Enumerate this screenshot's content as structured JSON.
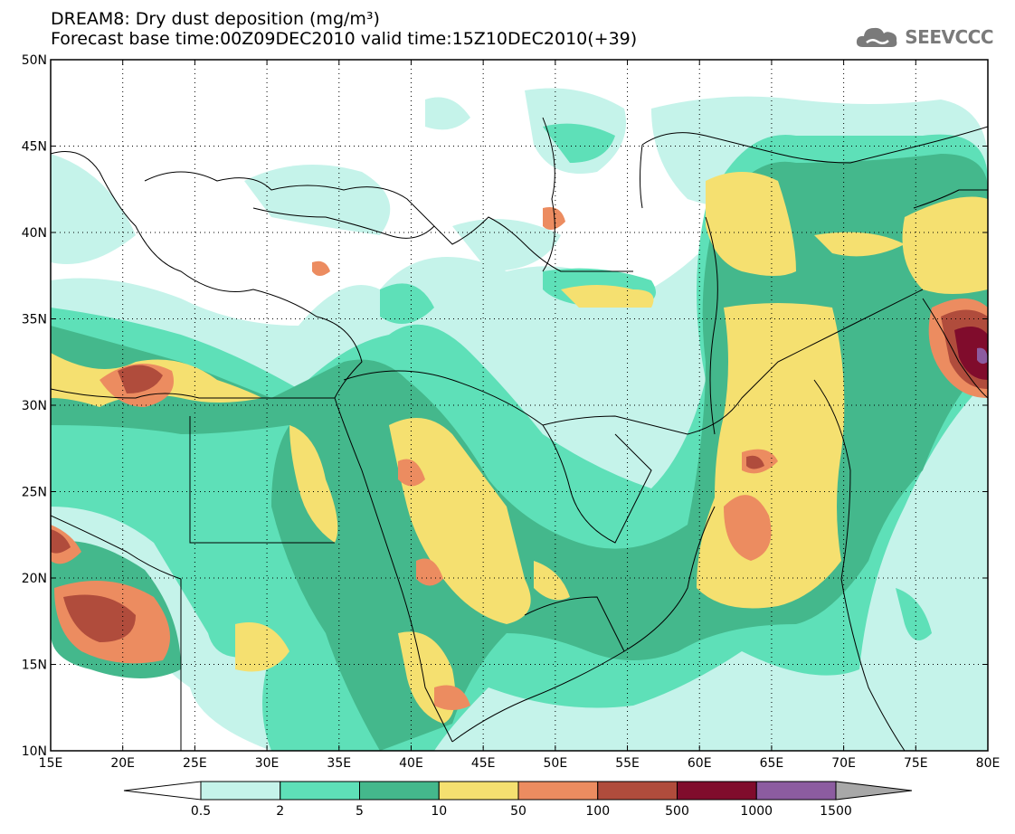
{
  "title": {
    "line1": "DREAM8: Dry dust deposition (mg/m³)",
    "line2": "Forecast base time:00Z09DEC2010 valid time:15Z10DEC2010(+39)"
  },
  "logo": {
    "text": "SEEVCCC",
    "icon": "cloud-icon"
  },
  "map": {
    "lon_ticks": [
      "15E",
      "20E",
      "25E",
      "30E",
      "35E",
      "40E",
      "45E",
      "50E",
      "55E",
      "60E",
      "65E",
      "70E",
      "75E",
      "80E"
    ],
    "lat_ticks": [
      "50N",
      "45N",
      "40N",
      "35N",
      "30N",
      "25N",
      "20N",
      "15N",
      "10N"
    ],
    "lon_range": [
      15,
      80
    ],
    "lat_range": [
      10,
      50
    ],
    "grid": "dotted"
  },
  "colorbar": {
    "labels": [
      "0.5",
      "2",
      "5",
      "10",
      "50",
      "100",
      "500",
      "1000",
      "1500"
    ],
    "colors": [
      "#c5f3ea",
      "#5ee0b8",
      "#44b88c",
      "#f5e070",
      "#ec8c60",
      "#b04c3c",
      "#800c2c",
      "#8c5ca0",
      "#a8a8a8"
    ],
    "under_color": "#ffffff",
    "over_color": "#a8a8a8"
  },
  "legend_colors": {
    "c1": "#c5f3ea",
    "c2": "#5ee0b8",
    "c3": "#44b88c",
    "c4": "#f5e070",
    "c5": "#ec8c60",
    "c6": "#b04c3c",
    "c7": "#800c2c",
    "c8": "#8c5ca0"
  }
}
